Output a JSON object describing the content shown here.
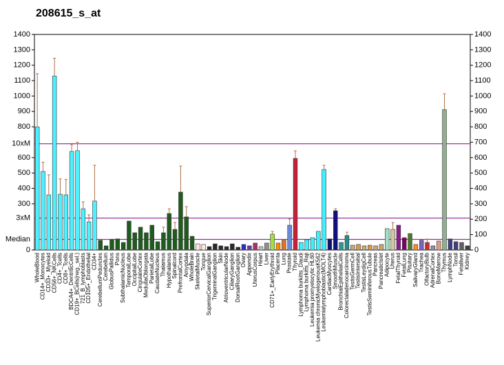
{
  "chart_data": {
    "type": "bar",
    "title": "208615_s_at",
    "categories": [
      "WholeBlood",
      "CD14+_Monocytes",
      "CD33+_Myeloid",
      "CD56+_NKCells",
      "CD4+_Tcells",
      "CD8+_Tcells",
      "BDCA4+_DentriticCells",
      "CD19+_BCells(neg._sel.)",
      "721_B_lymphoblasts",
      "CD105+_Endothelial",
      "CD34+",
      "CerebellumPeduncles",
      "Cerebellum",
      "GlobusPallidus",
      "Pons",
      "SubthalamicNucleus",
      "TemporalLobe",
      "OccipitalLobe",
      "CingulateCortex",
      "MedullaOblongata",
      "ParietalLobe",
      "CaudateNucleus",
      "Thalamus",
      "Hypothalamus",
      "Spinalcord",
      "PrefrontalCortex",
      "Amygdala",
      "WholeBrain",
      "SkeletalMuscle",
      "Tongue",
      "SuperiorCervicalGanglion",
      "TrigeminalGanglion",
      "Skin",
      "AtrioventricularNode",
      "CiliaryGanglion",
      "DorsalRootGanglion",
      "Ovary",
      "Appendix",
      "UterusCorpus",
      "Heart",
      "Liver",
      "CD71+_EarlyErythroid",
      "Placenta",
      "Lung",
      "Prostate",
      "Thyroid",
      "Lymphoma burkitts_Daudi",
      "Lymphoma burkitts_Raji",
      "Leukemia promyelocytic HL60",
      "Leukemia chronicMyelogenousK562",
      "Leukemialymphoblastic(MOLT4)",
      "CardiacMyocytes",
      "SmoothMuscle",
      "BronchialEpithelialCells",
      "Colorectaladenocarcinoma",
      "TestisGermCell",
      "TestisIntersitial",
      "TestisLeydigCell",
      "TestisSeminiferousTubule",
      "Pancreas",
      "PancreaticIslet",
      "Adipocyte",
      "Uterus",
      "FetalThyroid",
      "FetalLung",
      "Pituitary",
      "SalivaryGland",
      "Trachea",
      "OlfactoryBulb",
      "AdrenalCortex",
      "BoneMarrow",
      "Thymus",
      "LymphNode",
      "Tonsil",
      "Fetalliver",
      "Kidney"
    ],
    "values": [
      800,
      510,
      358,
      1130,
      362,
      358,
      640,
      645,
      268,
      183,
      318,
      63,
      27,
      67,
      72,
      49,
      188,
      112,
      148,
      112,
      161,
      54,
      112,
      237,
      134,
      376,
      215,
      89,
      40,
      36,
      22,
      40,
      27,
      22,
      40,
      18,
      36,
      27,
      45,
      22,
      45,
      103,
      45,
      63,
      161,
      595,
      49,
      67,
      80,
      121,
      523,
      72,
      255,
      49,
      94,
      31,
      36,
      27,
      31,
      27,
      36,
      139,
      134,
      161,
      80,
      107,
      36,
      63,
      49,
      27,
      58,
      912,
      72,
      54,
      49,
      27
    ],
    "errors": [
      345,
      60,
      130,
      115,
      100,
      100,
      45,
      55,
      45,
      45,
      232,
      null,
      null,
      null,
      null,
      null,
      null,
      null,
      null,
      null,
      null,
      null,
      36,
      31,
      45,
      169,
      67,
      null,
      null,
      null,
      null,
      null,
      null,
      null,
      null,
      null,
      null,
      null,
      null,
      null,
      null,
      18,
      null,
      null,
      40,
      49,
      null,
      null,
      null,
      null,
      27,
      null,
      13,
      null,
      22,
      null,
      null,
      null,
      null,
      null,
      null,
      null,
      45,
      null,
      null,
      null,
      null,
      null,
      22,
      null,
      null,
      103,
      null,
      null,
      null,
      null
    ],
    "colors": [
      "#4ff0ff",
      "#4ff0ff",
      "#4ff0ff",
      "#4ff0ff",
      "#4ff0ff",
      "#4ff0ff",
      "#4ff0ff",
      "#4ff0ff",
      "#4ff0ff",
      "#4ff0ff",
      "#4ff0ff",
      "#1e5c1e",
      "#1e5c1e",
      "#1e5c1e",
      "#1e5c1e",
      "#1e5c1e",
      "#1e5c1e",
      "#1e5c1e",
      "#1e5c1e",
      "#1e5c1e",
      "#1e5c1e",
      "#1e5c1e",
      "#1e5c1e",
      "#1e5c1e",
      "#1e5c1e",
      "#1e5c1e",
      "#1e5c1e",
      "#1e5c1e",
      "#fde8e0",
      "#fde8e0",
      "#2a2a2a",
      "#2a2a2a",
      "#2a2a2a",
      "#2a2a2a",
      "#2a2a2a",
      "#2a2a2a",
      "#2a2acf",
      "#6a3d9a",
      "#b03060",
      "#c0c0c0",
      "#909090",
      "#a0e040",
      "#ff8c00",
      "#e87020",
      "#6a8ad8",
      "#c8203c",
      "#3cf0ff",
      "#3cf0ff",
      "#3cf0ff",
      "#3cf0ff",
      "#3cf0ff",
      "#101070",
      "#101080",
      "#2a9a8a",
      "#2a8a8a",
      "#c8a878",
      "#d89848",
      "#c8a878",
      "#d89848",
      "#c8a878",
      "#c8a878",
      "#a0e0c0",
      "#d0c8a0",
      "#8b1a8b",
      "#800060",
      "#4a7a2a",
      "#ff8c20",
      "#8060c0",
      "#c03030",
      "#9090a0",
      "#e0a080",
      "#8fb08f",
      "#404080",
      "#404080",
      "#606060",
      "#404040"
    ],
    "ylim": [
      0,
      1400
    ],
    "yticks": [
      0,
      300,
      400,
      500,
      600,
      800,
      900,
      1000,
      1100,
      1200,
      1300,
      1400
    ],
    "y2lim": [
      0,
      1400
    ],
    "y2ticks": [
      0,
      100,
      200,
      300,
      400,
      500,
      600,
      700,
      800,
      900,
      1000,
      1100,
      1200,
      1300,
      1400
    ],
    "reference_lines": [
      {
        "value": 690,
        "label": "10xM"
      },
      {
        "value": 207,
        "label": "3xM"
      },
      {
        "value": 69,
        "label": "Median"
      }
    ],
    "reference_color": "#800080",
    "error_color": "#b0704a"
  }
}
